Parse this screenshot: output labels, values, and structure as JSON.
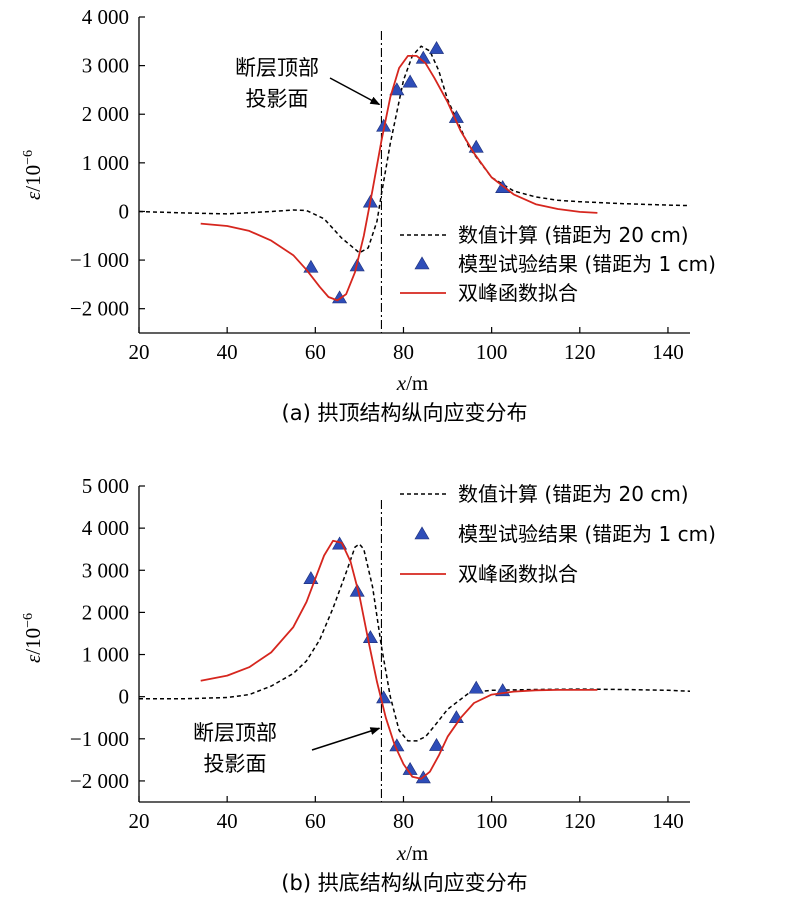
{
  "chart_data": [
    {
      "type": "line",
      "caption": "(a) 拱顶结构纵向应变分布",
      "xlabel_var": "x",
      "xlabel_unit": "/m",
      "ylabel_var": "ε",
      "ylabel_unit": "/10",
      "ylabel_exp": "−6",
      "xlim": [
        20,
        145
      ],
      "ylim": [
        -2500,
        4000
      ],
      "xticks": [
        20,
        40,
        60,
        80,
        100,
        120,
        140
      ],
      "xtick_labels": [
        "20",
        "40",
        "60",
        "80",
        "100",
        "120",
        "140"
      ],
      "yticks": [
        -2000,
        -1000,
        0,
        1000,
        2000,
        3000,
        4000
      ],
      "ytick_labels": [
        "−2 000",
        "−1 000",
        "0",
        "1 000",
        "2 000",
        "3 000",
        "4 000"
      ],
      "fault_x": 75,
      "annotation": {
        "lines": [
          "断层顶部",
          "投影面"
        ],
        "arrow_to": [
          75,
          2200
        ]
      },
      "legend": {
        "position": "bottom-right",
        "items": [
          "数值计算 (错距为 20 cm)",
          "模型试验结果 (错距为 1 cm)",
          "双峰函数拟合"
        ]
      },
      "series": [
        {
          "name": "数值计算 (错距为 20 cm)",
          "style": "dashed",
          "color": "#000000",
          "x": [
            20,
            30,
            40,
            50,
            55,
            58,
            62,
            66,
            70,
            72,
            74,
            75,
            77,
            80,
            82,
            84,
            86,
            88,
            90,
            95,
            100,
            105,
            110,
            115,
            120,
            130,
            140,
            145
          ],
          "y": [
            0,
            -30,
            -50,
            0,
            30,
            20,
            -150,
            -550,
            -850,
            -750,
            -200,
            350,
            1400,
            2700,
            3200,
            3400,
            3300,
            2900,
            2300,
            1300,
            700,
            420,
            300,
            230,
            200,
            160,
            130,
            120
          ]
        },
        {
          "name": "模型试验结果 (错距为 1 cm)",
          "style": "markers",
          "color": "#2e4db8",
          "x": [
            59,
            65.5,
            69.5,
            72.5,
            75.5,
            78.5,
            81.5,
            84.5,
            87.5,
            92,
            96.5,
            102.5
          ],
          "y": [
            -1150,
            -1780,
            -1120,
            190,
            1750,
            2500,
            2660,
            3150,
            3350,
            1930,
            1320,
            490
          ]
        },
        {
          "name": "双峰函数拟合",
          "style": "solid",
          "color": "#d6261e",
          "x": [
            34,
            40,
            45,
            50,
            55,
            58,
            61,
            63,
            65,
            67,
            69,
            71,
            73,
            75,
            77,
            79,
            81,
            83,
            85,
            87,
            90,
            93,
            96,
            100,
            105,
            110,
            115,
            120,
            124
          ],
          "y": [
            -250,
            -300,
            -400,
            -600,
            -900,
            -1200,
            -1550,
            -1760,
            -1830,
            -1700,
            -1250,
            -500,
            450,
            1450,
            2350,
            2950,
            3200,
            3200,
            3050,
            2750,
            2250,
            1650,
            1200,
            700,
            350,
            150,
            50,
            -10,
            -30
          ]
        }
      ]
    },
    {
      "type": "line",
      "caption": "(b) 拱底结构纵向应变分布",
      "xlabel_var": "x",
      "xlabel_unit": "/m",
      "ylabel_var": "ε",
      "ylabel_unit": "/10",
      "ylabel_exp": "−6",
      "xlim": [
        20,
        145
      ],
      "ylim": [
        -2500,
        5000
      ],
      "xticks": [
        20,
        40,
        60,
        80,
        100,
        120,
        140
      ],
      "xtick_labels": [
        "20",
        "40",
        "60",
        "80",
        "100",
        "120",
        "140"
      ],
      "yticks": [
        -2000,
        -1000,
        0,
        1000,
        2000,
        3000,
        4000,
        5000
      ],
      "ytick_labels": [
        "−2 000",
        "−1 000",
        "0",
        "1 000",
        "2 000",
        "3 000",
        "4 000",
        "5 000"
      ],
      "fault_x": 75,
      "annotation": {
        "lines": [
          "断层顶部",
          "投影面"
        ],
        "arrow_to": [
          75,
          -750
        ]
      },
      "legend": {
        "position": "top-right",
        "items": [
          "数值计算 (错距为 20 cm)",
          "模型试验结果 (错距为 1 cm)",
          "双峰函数拟合"
        ]
      },
      "series": [
        {
          "name": "数值计算 (错距为 20 cm)",
          "style": "dashed",
          "color": "#000000",
          "x": [
            20,
            30,
            40,
            45,
            50,
            55,
            58,
            61,
            64,
            67,
            69,
            70,
            71,
            73,
            75,
            77,
            79,
            81,
            83,
            85,
            87,
            90,
            95,
            100,
            105,
            110,
            120,
            130,
            140,
            145
          ],
          "y": [
            -50,
            -50,
            -20,
            50,
            250,
            550,
            850,
            1350,
            2100,
            2950,
            3550,
            3620,
            3500,
            2600,
            1200,
            0,
            -800,
            -1050,
            -1050,
            -950,
            -700,
            -300,
            100,
            150,
            160,
            170,
            180,
            170,
            150,
            130
          ]
        },
        {
          "name": "模型试验结果 (错距为 1 cm)",
          "style": "markers",
          "color": "#2e4db8",
          "x": [
            59,
            65.5,
            69.5,
            72.5,
            75.5,
            78.5,
            81.5,
            84.5,
            87.5,
            92,
            96.5,
            102.5
          ],
          "y": [
            2800,
            3620,
            2500,
            1400,
            -30,
            -1170,
            -1730,
            -1930,
            -1160,
            -500,
            200,
            140
          ]
        },
        {
          "name": "双峰函数拟合",
          "style": "solid",
          "color": "#d6261e",
          "x": [
            34,
            40,
            45,
            50,
            55,
            58,
            60,
            62,
            64,
            66,
            68,
            70,
            72,
            74,
            76,
            78,
            80,
            82,
            84,
            86,
            88,
            90,
            93,
            96,
            100,
            105,
            110,
            115,
            120,
            124
          ],
          "y": [
            380,
            500,
            700,
            1050,
            1650,
            2250,
            2800,
            3350,
            3700,
            3650,
            3200,
            2400,
            1350,
            350,
            -500,
            -1150,
            -1600,
            -1900,
            -1950,
            -1780,
            -1400,
            -950,
            -500,
            -150,
            50,
            120,
            150,
            160,
            160,
            160
          ]
        }
      ]
    }
  ]
}
